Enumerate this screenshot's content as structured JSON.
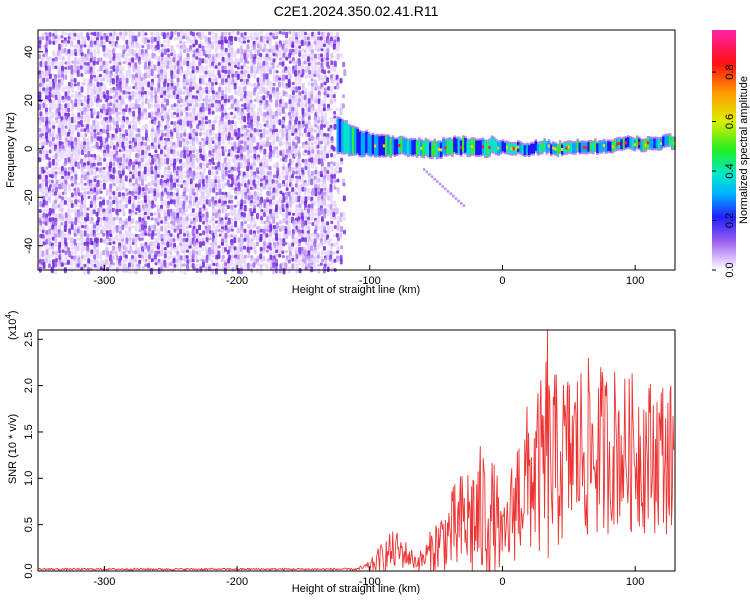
{
  "title": "C2E1.2024.350.02.41.R11",
  "chart_data": [
    {
      "type": "heatmap",
      "xlabel": "Height of straight line (km)",
      "ylabel": "Frequency (Hz)",
      "xlim": [
        -350,
        130
      ],
      "ylim": [
        -50,
        49
      ],
      "xticks": [
        -300,
        -200,
        -100,
        0,
        100
      ],
      "yticks": [
        -40,
        -20,
        0,
        20,
        40
      ],
      "noise_region_x": [
        -350,
        -125
      ],
      "signal_band": {
        "x": [
          -125,
          -110,
          -100,
          -90,
          -80,
          -70,
          -60,
          -50,
          -40,
          -30,
          -20,
          -10,
          0,
          10,
          20,
          30,
          40,
          50,
          60,
          70,
          80,
          90,
          100,
          110,
          120,
          130
        ],
        "center_hz": [
          6,
          3,
          2,
          1,
          1,
          1,
          0,
          0,
          1,
          1,
          0,
          1,
          1,
          0,
          0,
          1,
          0,
          1,
          1,
          1,
          1,
          2,
          2,
          2,
          3,
          3
        ],
        "halfwidth_hz": [
          7,
          5,
          4,
          4,
          3,
          3,
          3,
          3,
          3,
          3,
          3,
          3,
          2,
          2,
          2,
          2,
          2,
          2,
          2,
          2,
          2,
          2,
          2,
          2,
          2,
          2
        ]
      },
      "colorbar": {
        "label": "Normalized spectral amplitude",
        "range": [
          0,
          0.97
        ],
        "ticks": [
          0.0,
          0.2,
          0.4,
          0.6,
          0.8
        ]
      }
    },
    {
      "type": "line",
      "xlabel": "Height of straight line (km)",
      "ylabel": "SNR (10 * v/v)",
      "scale_label": "(x10",
      "scale_exp": "4",
      "scale_close": ")",
      "xlim": [
        -350,
        130
      ],
      "ylim": [
        0,
        2.6
      ],
      "xticks": [
        -300,
        -200,
        -100,
        0,
        100
      ],
      "yticks": [
        0.0,
        0.5,
        1.0,
        1.5,
        2.0,
        2.5
      ],
      "color": "#ee3333",
      "series": [
        {
          "name": "SNR",
          "x": [
            -350,
            -110,
            -100,
            -95,
            -90,
            -85,
            -80,
            -75,
            -70,
            -65,
            -60,
            -55,
            -50,
            -45,
            -40,
            -35,
            -30,
            -25,
            -20,
            -15,
            -10,
            -5,
            0,
            5,
            10,
            15,
            20,
            25,
            30,
            33,
            35,
            40,
            45,
            50,
            55,
            60,
            65,
            70,
            75,
            80,
            85,
            90,
            95,
            100,
            105,
            110,
            115,
            120,
            125,
            130
          ],
          "base": [
            0.02,
            0.02,
            0.05,
            0.1,
            0.15,
            0.2,
            0.22,
            0.2,
            0.15,
            0.1,
            0.12,
            0.2,
            0.28,
            0.35,
            0.4,
            0.45,
            0.5,
            0.55,
            0.55,
            0.6,
            0.6,
            0.55,
            0.3,
            0.5,
            0.8,
            0.9,
            1.0,
            1.05,
            1.1,
            1.2,
            1.15,
            1.15,
            1.2,
            1.25,
            1.3,
            1.3,
            1.3,
            1.25,
            1.3,
            1.3,
            1.35,
            1.3,
            1.25,
            1.3,
            1.3,
            1.25,
            1.25,
            1.3,
            1.2,
            1.2
          ],
          "amp": [
            0.01,
            0.01,
            0.06,
            0.12,
            0.18,
            0.22,
            0.22,
            0.18,
            0.12,
            0.1,
            0.12,
            0.22,
            0.3,
            0.35,
            0.42,
            0.55,
            0.6,
            0.68,
            0.75,
            0.8,
            0.7,
            0.6,
            0.3,
            0.5,
            0.7,
            0.8,
            0.85,
            0.9,
            1.0,
            1.3,
            1.1,
            1.0,
            0.95,
            0.95,
            0.95,
            1.0,
            1.0,
            0.95,
            0.95,
            0.9,
            0.9,
            0.85,
            0.85,
            0.9,
            0.9,
            0.85,
            0.85,
            0.85,
            0.85,
            0.85
          ]
        }
      ],
      "peak": {
        "x": 34,
        "y": 2.6
      }
    }
  ]
}
